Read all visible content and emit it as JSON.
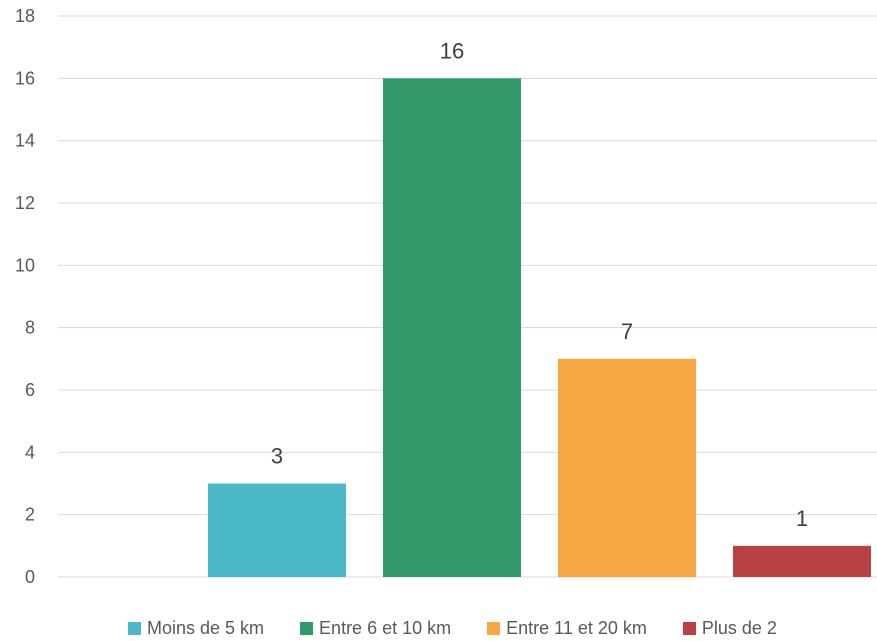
{
  "chart_data": {
    "type": "bar",
    "title": "",
    "xlabel": "",
    "ylabel": "",
    "ylim": [
      0,
      18
    ],
    "yticks": [
      0,
      2,
      4,
      6,
      8,
      10,
      12,
      14,
      16,
      18
    ],
    "grid": true,
    "legend_position": "bottom",
    "series": [
      {
        "name": "Moins de 5 km",
        "value": 3,
        "color": "#4BB8C8"
      },
      {
        "name": "Entre 6 et 10 km",
        "value": 16,
        "color": "#31996A"
      },
      {
        "name": "Entre 11 et 20 km",
        "value": 7,
        "color": "#F6A744"
      },
      {
        "name": "Plus de 2",
        "value": 1,
        "color": "#B94141"
      }
    ]
  }
}
